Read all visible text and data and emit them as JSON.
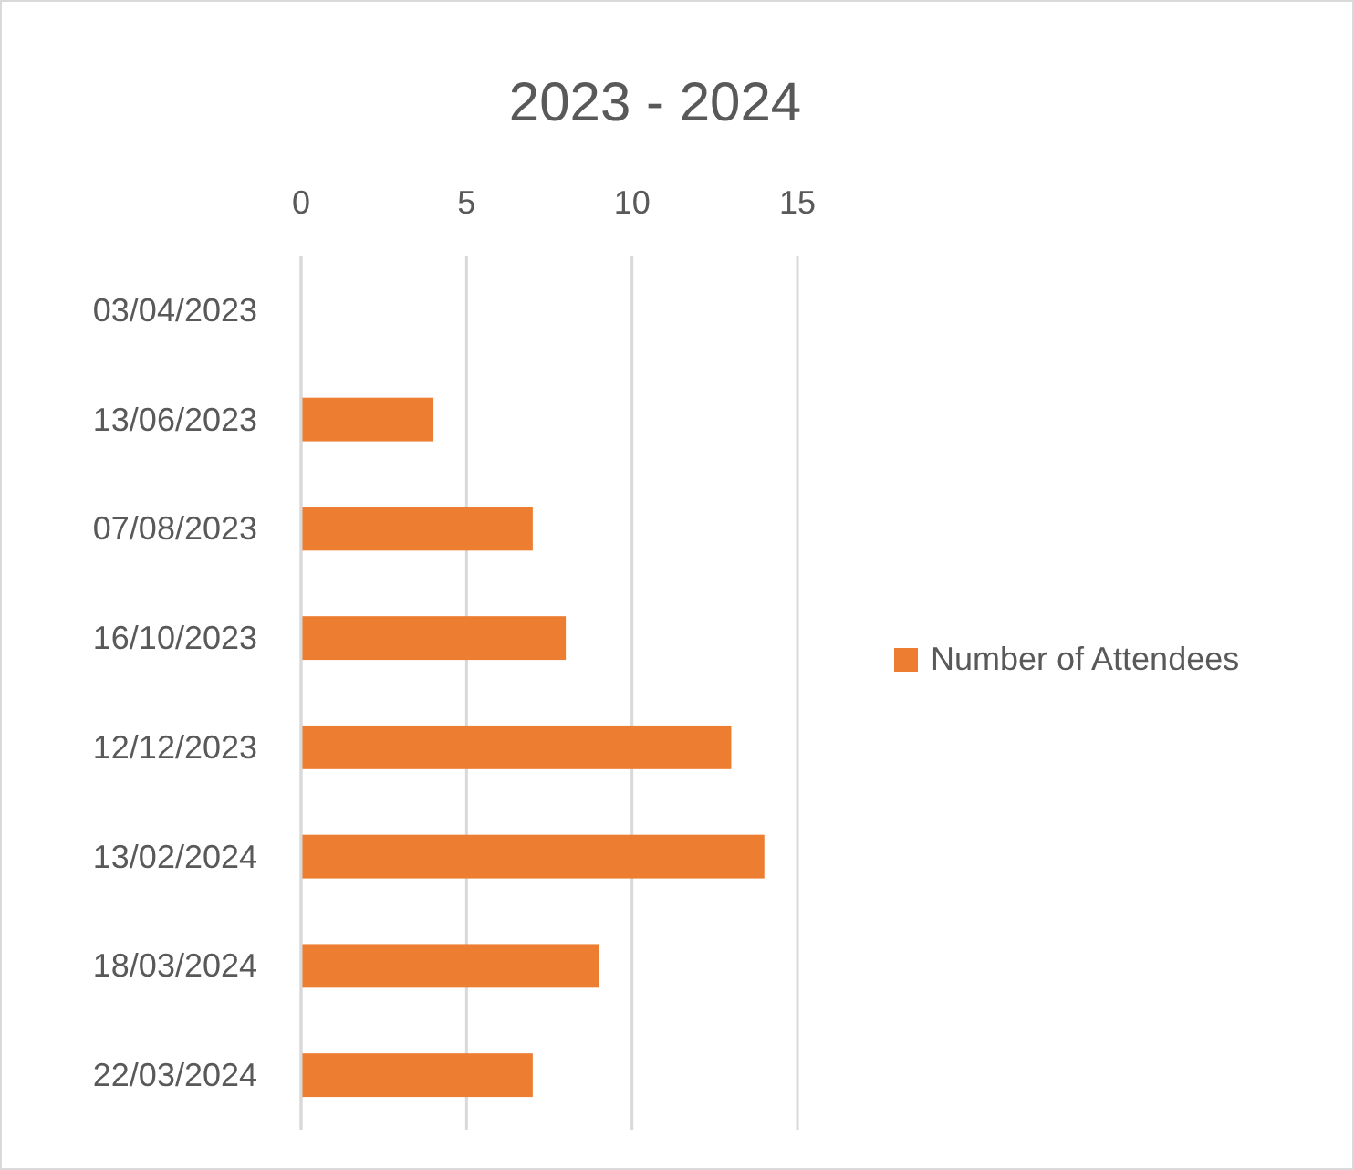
{
  "chart_data": {
    "type": "bar",
    "orientation": "horizontal",
    "title": "2023 - 2024",
    "categories": [
      "03/04/2023",
      "13/06/2023",
      "07/08/2023",
      "16/10/2023",
      "12/12/2023",
      "13/02/2024",
      "18/03/2024",
      "22/03/2024"
    ],
    "series": [
      {
        "name": "Number of Attendees",
        "color": "#ed7d31",
        "values": [
          0,
          4,
          7,
          8,
          13,
          14,
          9,
          7
        ]
      }
    ],
    "xlim": [
      0,
      15
    ],
    "xticks": [
      0,
      5,
      10,
      15
    ],
    "grid": "x",
    "legend": "right"
  }
}
